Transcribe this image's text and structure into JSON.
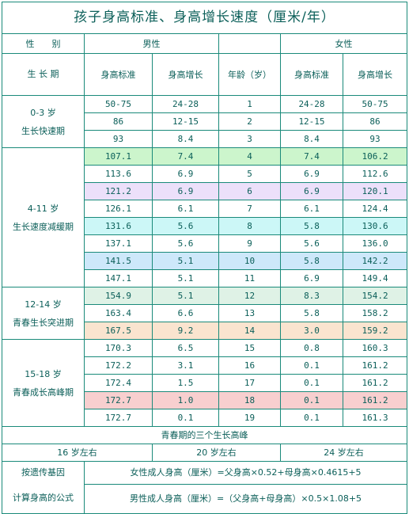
{
  "title": "孩子身高标准、身高增长速度（厘米/年）",
  "header": {
    "gender_label": "性　　别",
    "period_label": "生 长 期",
    "male": "男性",
    "female": "女性",
    "height_std": "身高标准",
    "height_growth": "身高增长",
    "age": "年龄（岁）"
  },
  "periods": [
    {
      "range": "0-3 岁",
      "name": "生长快速期"
    },
    {
      "range": "4-11 岁",
      "name": "生长速度减缓期"
    },
    {
      "range": "12-14 岁",
      "name": "青春生长突进期"
    },
    {
      "range": "15-18 岁",
      "name": "青春成长高峰期"
    }
  ],
  "rows": [
    {
      "m_std": "50-75",
      "m_grow": "24-28",
      "age": "1",
      "f_grow": "24-28",
      "f_std": "50-75"
    },
    {
      "m_std": "86",
      "m_grow": "12-15",
      "age": "2",
      "f_grow": "12-15",
      "f_std": "86"
    },
    {
      "m_std": "93",
      "m_grow": "8.4",
      "age": "3",
      "f_grow": "8.4",
      "f_std": "93"
    },
    {
      "m_std": "107.1",
      "m_grow": "7.4",
      "age": "4",
      "f_grow": "7.4",
      "f_std": "106.2"
    },
    {
      "m_std": "113.6",
      "m_grow": "6.9",
      "age": "5",
      "f_grow": "6.9",
      "f_std": "112.6"
    },
    {
      "m_std": "121.2",
      "m_grow": "6.9",
      "age": "6",
      "f_grow": "6.9",
      "f_std": "120.1"
    },
    {
      "m_std": "126.1",
      "m_grow": "6.1",
      "age": "7",
      "f_grow": "6.1",
      "f_std": "124.4"
    },
    {
      "m_std": "131.6",
      "m_grow": "5.6",
      "age": "8",
      "f_grow": "5.8",
      "f_std": "130.6"
    },
    {
      "m_std": "137.1",
      "m_grow": "5.6",
      "age": "9",
      "f_grow": "5.6",
      "f_std": "136.0"
    },
    {
      "m_std": "141.5",
      "m_grow": "5.1",
      "age": "10",
      "f_grow": "5.8",
      "f_std": "142.2"
    },
    {
      "m_std": "147.1",
      "m_grow": "5.1",
      "age": "11",
      "f_grow": "6.9",
      "f_std": "149.4"
    },
    {
      "m_std": "154.9",
      "m_grow": "5.1",
      "age": "12",
      "f_grow": "8.3",
      "f_std": "154.2"
    },
    {
      "m_std": "163.4",
      "m_grow": "6.6",
      "age": "13",
      "f_grow": "5.8",
      "f_std": "158.2"
    },
    {
      "m_std": "167.5",
      "m_grow": "9.2",
      "age": "14",
      "f_grow": "3.0",
      "f_std": "159.2"
    },
    {
      "m_std": "170.3",
      "m_grow": "6.5",
      "age": "15",
      "f_grow": "0.8",
      "f_std": "160.3"
    },
    {
      "m_std": "172.2",
      "m_grow": "3.1",
      "age": "16",
      "f_grow": "0.1",
      "f_std": "161.2"
    },
    {
      "m_std": "172.4",
      "m_grow": "1.5",
      "age": "17",
      "f_grow": "0.1",
      "f_std": "161.2"
    },
    {
      "m_std": "172.7",
      "m_grow": "1.0",
      "age": "18",
      "f_grow": "0.1",
      "f_std": "161.2"
    },
    {
      "m_std": "172.7",
      "m_grow": "0.1",
      "age": "19",
      "f_grow": "0.1",
      "f_std": "161.3"
    }
  ],
  "peaks_title": "青春期的三个生长高峰",
  "peaks": [
    "16 岁左右",
    "20 岁左右",
    "24 岁左右"
  ],
  "formula": {
    "label_1": "按遗传基因",
    "label_2": "计算身高的公式",
    "female": "女性成人身高（厘米）=父身高×0.52+母身高×0.4615+5",
    "male": "男性成人身高（厘米）=（父身高+母身高）×0.5×1.08+5"
  },
  "colors": {
    "border": "#1a8a7a",
    "text": "#0b5f59",
    "green": "#ccf5cc",
    "violet": "#ece0fa",
    "cyan": "#ccf7f7",
    "blue": "#cde8fa",
    "mint": "#dff2e6",
    "orange": "#fae4cf",
    "pink": "#f8cfcf"
  }
}
